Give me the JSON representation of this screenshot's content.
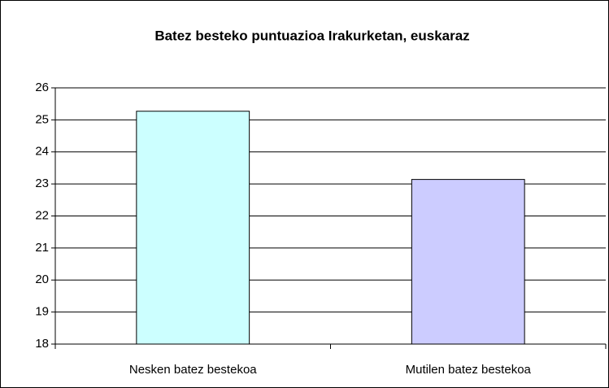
{
  "chart_data": {
    "type": "bar",
    "title": "Batez besteko puntuazioa Irakurketan, euskaraz",
    "categories": [
      "Nesken batez bestekoa",
      "Mutilen batez bestekoa"
    ],
    "values": [
      25.27,
      23.14
    ],
    "colors": [
      "#ccffff",
      "#ccccff"
    ],
    "ylim": [
      18,
      26
    ],
    "yticks": [
      18,
      19,
      20,
      21,
      22,
      23,
      24,
      25,
      26
    ],
    "grid": true
  }
}
